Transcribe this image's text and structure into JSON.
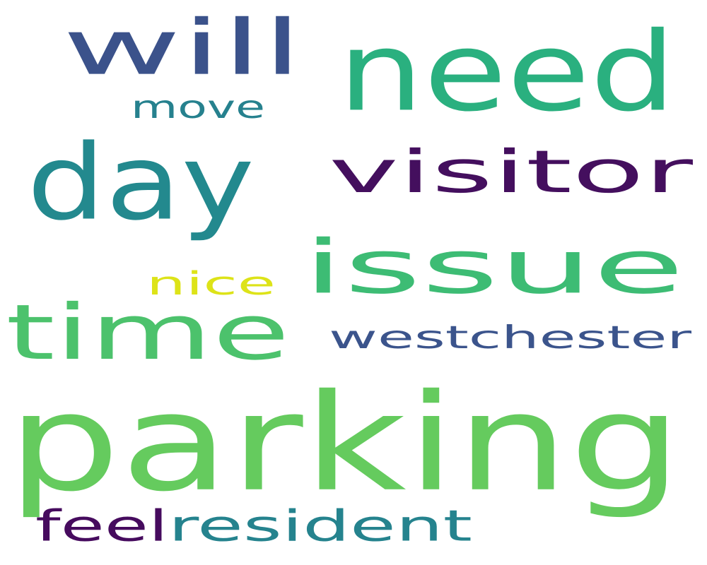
{
  "word_cloud": {
    "words": [
      {
        "id": "will",
        "text": "will",
        "color": "#3b528b"
      },
      {
        "id": "need",
        "text": "need",
        "color": "#2ab07f"
      },
      {
        "id": "move",
        "text": "move",
        "color": "#26818e"
      },
      {
        "id": "day",
        "text": "day",
        "color": "#23898e"
      },
      {
        "id": "visitor",
        "text": "visitor",
        "color": "#440f5e"
      },
      {
        "id": "issue",
        "text": "issue",
        "color": "#3dbc74"
      },
      {
        "id": "nice",
        "text": "nice",
        "color": "#dde318"
      },
      {
        "id": "time",
        "text": "time",
        "color": "#4cc26c"
      },
      {
        "id": "westchester",
        "text": "westchester",
        "color": "#3b548c"
      },
      {
        "id": "parking",
        "text": "parking",
        "color": "#65cb5e"
      },
      {
        "id": "feel",
        "text": "feel",
        "color": "#460b5e"
      },
      {
        "id": "resident",
        "text": "resident",
        "color": "#25838e"
      }
    ]
  }
}
